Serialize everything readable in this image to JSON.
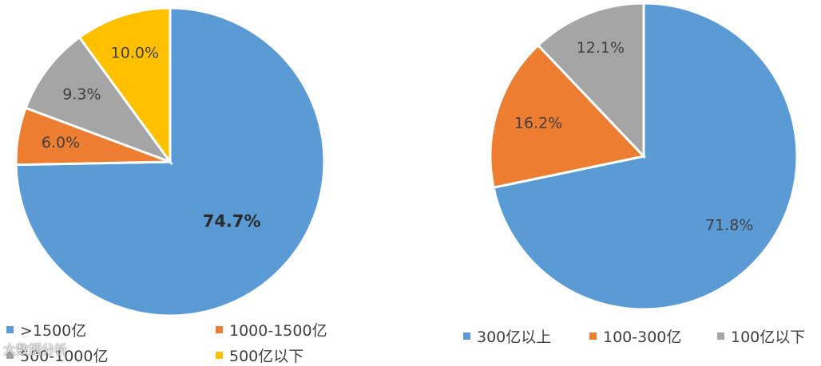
{
  "chart_data": [
    {
      "type": "pie",
      "title": "",
      "slices": [
        {
          "label": ">1500亿",
          "value": 74.7,
          "text": "74.7%",
          "color": "#5B9BD5"
        },
        {
          "label": "1000-1500亿",
          "value": 6.0,
          "text": "6.0%",
          "color": "#ED7D31"
        },
        {
          "label": "500-1000亿",
          "value": 9.3,
          "text": "9.3%",
          "color": "#A5A5A5"
        },
        {
          "label": "500亿以下",
          "value": 10.0,
          "text": "10.0%",
          "color": "#FFC000"
        }
      ],
      "legend_position": "bottom"
    },
    {
      "type": "pie",
      "title": "",
      "slices": [
        {
          "label": "300亿以上",
          "value": 71.8,
          "text": "71.8%",
          "color": "#5B9BD5"
        },
        {
          "label": "100-300亿",
          "value": 16.2,
          "text": "16.2%",
          "color": "#ED7D31"
        },
        {
          "label": "100亿以下",
          "value": 12.1,
          "text": "12.1%",
          "color": "#A5A5A5"
        }
      ],
      "legend_position": "bottom"
    }
  ],
  "watermark": "大数据分析"
}
